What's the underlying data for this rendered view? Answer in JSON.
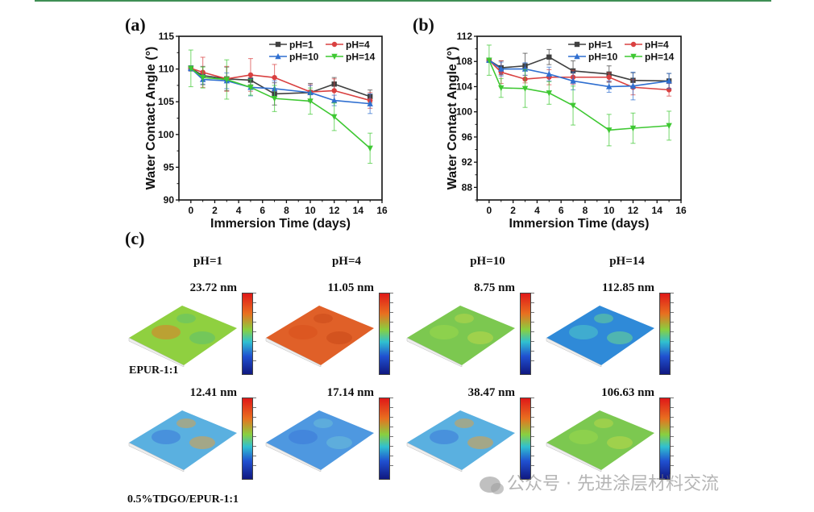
{
  "panels": {
    "a": "(a)",
    "b": "(b)",
    "c": "(c)"
  },
  "chart_data": [
    {
      "id": "a",
      "type": "line",
      "title": "",
      "xlabel": "Immersion Time (days)",
      "ylabel": "Water Contact Angle (°)",
      "xlim": [
        -1,
        16
      ],
      "ylim": [
        90,
        115
      ],
      "xticks": [
        0,
        2,
        4,
        6,
        8,
        10,
        12,
        14,
        16
      ],
      "yticks": [
        90,
        95,
        100,
        105,
        110,
        115
      ],
      "grid": false,
      "legend_position": "top-right",
      "x": [
        0,
        1,
        3,
        5,
        7,
        10,
        12,
        15
      ],
      "series": [
        {
          "name": "pH=1",
          "color": "#404040",
          "marker": "square",
          "values": [
            110.1,
            109.0,
            108.5,
            108.3,
            106.2,
            106.4,
            107.7,
            105.8
          ],
          "errors": [
            0.4,
            1.4,
            1.8,
            0.7,
            1.7,
            1.4,
            1.0,
            1.0
          ]
        },
        {
          "name": "pH=4",
          "color": "#d94040",
          "marker": "circle",
          "values": [
            110.1,
            109.5,
            108.5,
            109.1,
            108.7,
            106.5,
            106.7,
            105.2
          ],
          "errors": [
            0.4,
            2.3,
            1.9,
            2.5,
            2.0,
            1.1,
            1.8,
            1.2
          ]
        },
        {
          "name": "pH=10",
          "color": "#2f6fd0",
          "marker": "triangle-up",
          "values": [
            110.1,
            108.4,
            108.2,
            107.2,
            107.0,
            106.4,
            105.2,
            104.7
          ],
          "errors": [
            0.4,
            0.7,
            1.2,
            1.3,
            1.2,
            1.1,
            0.8,
            1.5
          ]
        },
        {
          "name": "pH=14",
          "color": "#3ec832",
          "marker": "triangle-down",
          "values": [
            110.1,
            108.7,
            108.4,
            107.2,
            105.5,
            105.1,
            102.7,
            97.9
          ],
          "errors": [
            2.8,
            1.6,
            3.0,
            1.2,
            2.0,
            2.0,
            2.1,
            2.3
          ]
        }
      ]
    },
    {
      "id": "b",
      "type": "line",
      "title": "",
      "xlabel": "Immersion Time (days)",
      "ylabel": "Water Contact Angle (°)",
      "xlim": [
        -1,
        16
      ],
      "ylim": [
        86,
        112
      ],
      "xticks": [
        0,
        2,
        4,
        6,
        8,
        10,
        12,
        14,
        16
      ],
      "yticks": [
        88,
        92,
        96,
        100,
        104,
        108,
        112
      ],
      "grid": false,
      "legend_position": "top-right",
      "x": [
        0,
        1,
        3,
        5,
        7,
        10,
        12,
        15
      ],
      "series": [
        {
          "name": "pH=1",
          "color": "#404040",
          "marker": "square",
          "values": [
            108.2,
            107.0,
            107.3,
            108.7,
            106.5,
            106.0,
            105.0,
            104.9
          ],
          "errors": [
            0.3,
            1.1,
            2.0,
            1.2,
            1.6,
            1.3,
            1.2,
            1.2
          ]
        },
        {
          "name": "pH=4",
          "color": "#d94040",
          "marker": "circle",
          "values": [
            108.2,
            106.3,
            105.2,
            105.5,
            105.5,
            105.5,
            103.9,
            103.5
          ],
          "errors": [
            0.3,
            1.8,
            0.6,
            1.2,
            1.1,
            0.7,
            1.2,
            1.0
          ]
        },
        {
          "name": "pH=10",
          "color": "#2f6fd0",
          "marker": "triangle-up",
          "values": [
            108.2,
            106.8,
            106.8,
            106.0,
            104.9,
            104.0,
            104.1,
            104.9
          ],
          "errors": [
            0.3,
            1.1,
            1.0,
            1.1,
            1.4,
            0.9,
            2.2,
            1.2
          ]
        },
        {
          "name": "pH=14",
          "color": "#3ec832",
          "marker": "triangle-down",
          "values": [
            108.2,
            103.8,
            103.7,
            103.0,
            101.0,
            97.1,
            97.4,
            97.8
          ],
          "errors": [
            2.4,
            1.5,
            3.0,
            1.8,
            3.1,
            2.5,
            2.4,
            2.3
          ]
        }
      ]
    }
  ],
  "afm": {
    "columns": [
      "pH=1",
      "pH=4",
      "pH=10",
      "pH=14"
    ],
    "rows": [
      {
        "label": "EPUR-1:1",
        "cells": [
          {
            "roughness": "23.72 nm",
            "palette": "green-orange"
          },
          {
            "roughness": "11.05 nm",
            "palette": "orange"
          },
          {
            "roughness": "8.75 nm",
            "palette": "green"
          },
          {
            "roughness": "112.85 nm",
            "palette": "cyan-blue"
          }
        ]
      },
      {
        "label": "0.5%TDGO/EPUR-1:1",
        "cells": [
          {
            "roughness": "12.41 nm",
            "palette": "blue-peaks"
          },
          {
            "roughness": "17.14 nm",
            "palette": "blue"
          },
          {
            "roughness": "38.47 nm",
            "palette": "blue-peaks"
          },
          {
            "roughness": "106.63 nm",
            "palette": "green"
          }
        ]
      }
    ]
  },
  "watermark": "公众号 · 先进涂层材料交流"
}
